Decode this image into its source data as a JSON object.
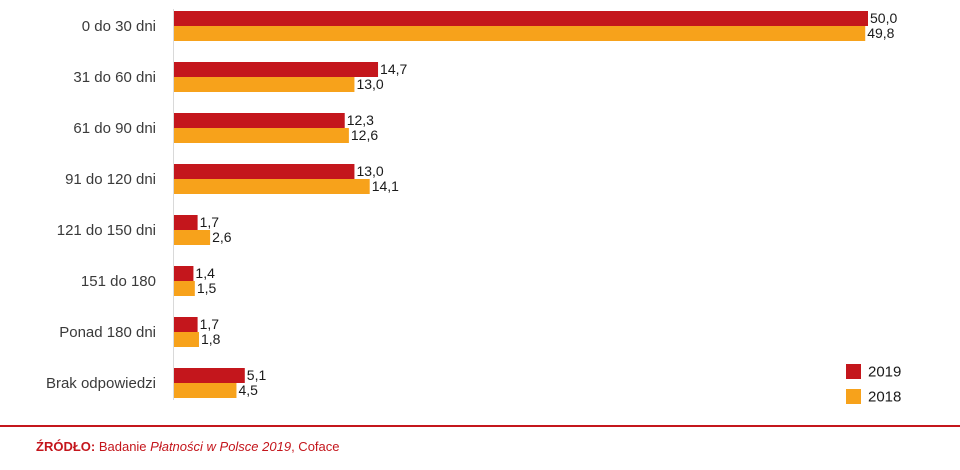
{
  "chart_data": {
    "type": "bar",
    "orientation": "horizontal",
    "categories": [
      "0 do 30 dni",
      "31 do 60 dni",
      "61 do 90 dni",
      "91 do 120 dni",
      "121 do 150 dni",
      "151 do 180",
      "Ponad 180 dni",
      "Brak odpowiedzi"
    ],
    "series": [
      {
        "name": "2019",
        "color": "#c4161c",
        "values": [
          50.0,
          14.7,
          12.3,
          13.0,
          1.7,
          1.4,
          1.7,
          5.1
        ],
        "labels": [
          "50,0",
          "14,7",
          "12,3",
          "13,0",
          "1,7",
          "1,4",
          "1,7",
          "5,1"
        ]
      },
      {
        "name": "2018",
        "color": "#f7a21b",
        "values": [
          49.8,
          13.0,
          12.6,
          14.1,
          2.6,
          1.5,
          1.8,
          4.5
        ],
        "labels": [
          "49,8",
          "13,0",
          "12,6",
          "14,1",
          "2,6",
          "1,5",
          "1,8",
          "4,5"
        ]
      }
    ],
    "xlim": [
      0,
      50
    ],
    "grid": false,
    "legend_position": "bottom-right"
  },
  "footer": {
    "source_label": "ŹRÓDŁO:",
    "source_text_1": " Badanie ",
    "source_italic": "Płatności w Polsce 2019",
    "source_text_2": ", Coface"
  }
}
